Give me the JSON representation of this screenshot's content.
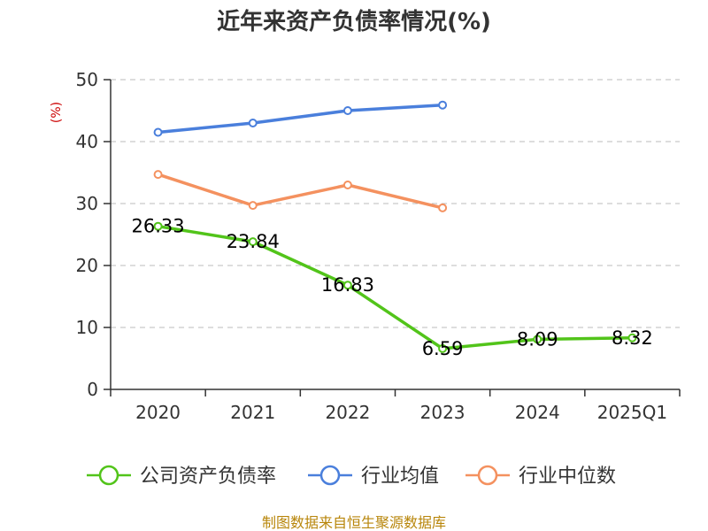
{
  "colors": {
    "company": "#52c41a",
    "industry_avg": "#4a7fdc",
    "industry_median": "#f4915f",
    "grid": "#bbbbbb",
    "axis": "#333333",
    "source": "#b8860b",
    "ylabel": "#cc0000"
  },
  "chart_data": {
    "type": "line",
    "title": "近年来资产负债率情况(%)",
    "ylabel": "(%)",
    "xlabel": "",
    "categories": [
      "2020",
      "2021",
      "2022",
      "2023",
      "2024",
      "2025Q1"
    ],
    "ylim": [
      0,
      50
    ],
    "yticks": [
      0,
      10,
      20,
      30,
      40,
      50
    ],
    "grid": true,
    "legend_position": "bottom",
    "series": [
      {
        "name": "公司资产负债率",
        "key": "company",
        "values": [
          26.33,
          23.84,
          16.83,
          6.59,
          8.09,
          8.32
        ],
        "labels": [
          "26.33",
          "23.84",
          "16.83",
          "6.59",
          "8.09",
          "8.32"
        ]
      },
      {
        "name": "行业均值",
        "key": "industry_avg",
        "values": [
          41.5,
          43.0,
          45.0,
          45.9,
          null,
          null
        ]
      },
      {
        "name": "行业中位数",
        "key": "industry_median",
        "values": [
          34.7,
          29.7,
          33.0,
          29.3,
          null,
          null
        ]
      }
    ]
  },
  "footer": {
    "source": "制图数据来自恒生聚源数据库"
  }
}
